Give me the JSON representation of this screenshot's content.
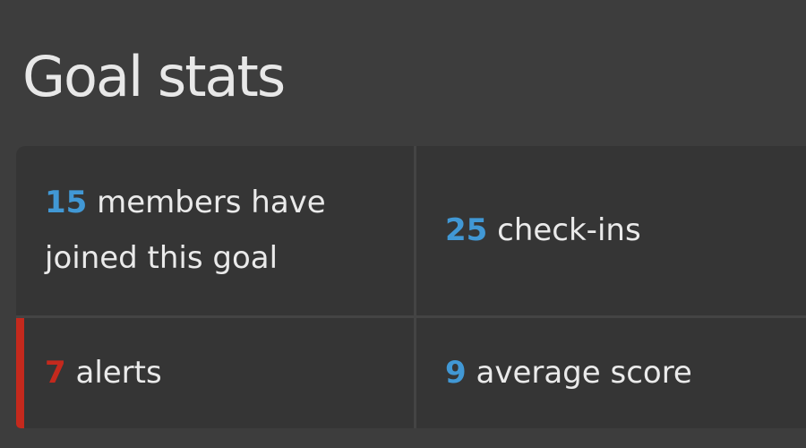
{
  "header": {
    "title": "Goal stats"
  },
  "colors": {
    "page_bg": "#3d3d3d",
    "card_bg": "#353535",
    "divider": "#444444",
    "text": "#eaeaea",
    "accent_blue": "#4198d5",
    "accent_red": "#c4291d"
  },
  "stats": {
    "members": {
      "value": "15",
      "label": "members have joined this goal"
    },
    "checkins": {
      "value": "25",
      "label": "check-ins"
    },
    "alerts": {
      "value": "7",
      "label": "alerts"
    },
    "average": {
      "value": "9",
      "label": "average score"
    }
  }
}
